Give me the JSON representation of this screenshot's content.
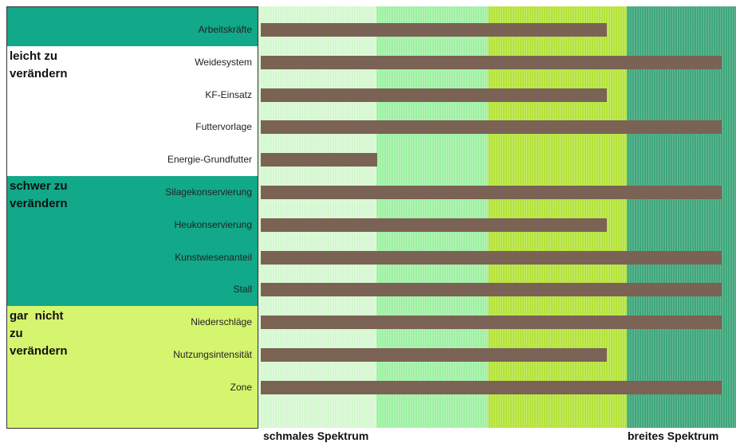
{
  "chart_data": {
    "type": "bar",
    "orientation": "horizontal",
    "color": "#7a6354",
    "xlim": [
      0,
      100
    ],
    "groups": [
      {
        "color": "#12a88a",
        "categories": [
          "Arbeitskräfte"
        ],
        "values": [
          73
        ]
      },
      {
        "label": "leicht zu verändern",
        "color": "#ffffff",
        "categories": [
          "Weidesystem",
          "KF-Einsatz",
          "Futtervorlage",
          "Energie-Grundfutter"
        ],
        "values": [
          97,
          73,
          97,
          25
        ]
      },
      {
        "label": "schwer zu verändern",
        "color": "#12a88a",
        "categories": [
          "Silagekonservierung",
          "Heukonservierung",
          "Kunstwiesenanteil",
          "Stall"
        ],
        "values": [
          97,
          73,
          97,
          97
        ]
      },
      {
        "label": "gar  nicht zu verändern",
        "color": "#d6f56e",
        "categories": [
          "Niederschläge",
          "Nutzungsintensität",
          "Zone"
        ],
        "values": [
          97,
          73,
          97
        ]
      }
    ],
    "footer": {
      "left": "schmales Spektrum",
      "right": "breites Spektrum"
    }
  }
}
